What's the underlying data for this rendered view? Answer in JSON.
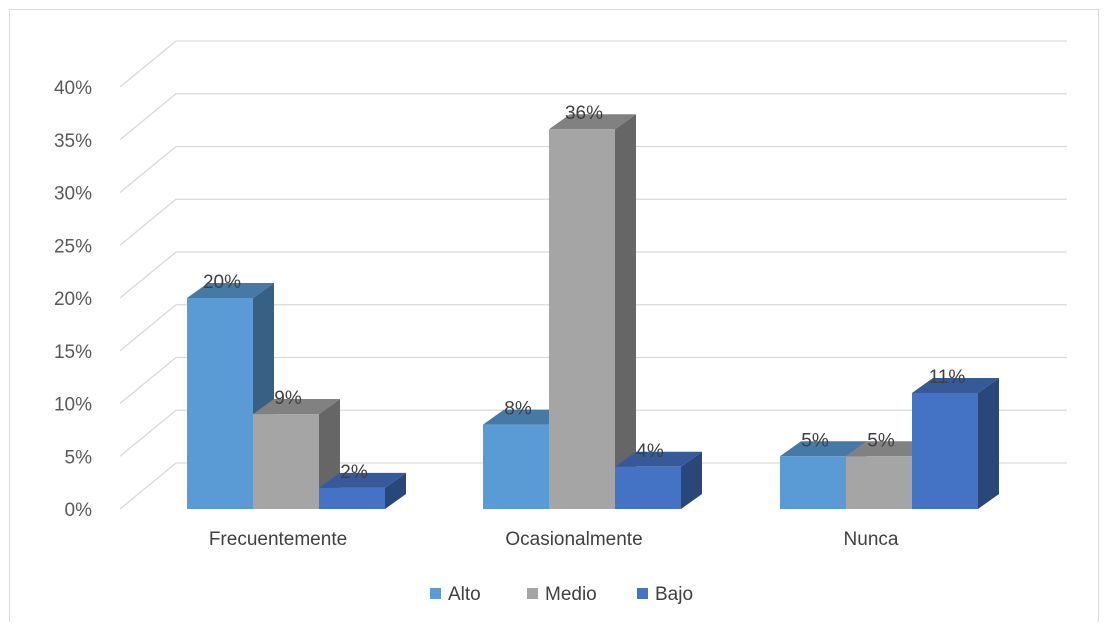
{
  "chart_data": {
    "type": "bar",
    "style": "3d-clustered-column",
    "categories": [
      "Frecuentemente",
      "Ocasionalmente",
      "Nunca"
    ],
    "series": [
      {
        "name": "Alto",
        "values": [
          20,
          8,
          5
        ],
        "labels": [
          "20%",
          "8%",
          "5%"
        ],
        "color": "#5b9bd5"
      },
      {
        "name": "Medio",
        "values": [
          9,
          36,
          5
        ],
        "labels": [
          "9%",
          "36%",
          "5%"
        ],
        "color": "#a5a5a5"
      },
      {
        "name": "Bajo",
        "values": [
          2,
          4,
          11
        ],
        "labels": [
          "2%",
          "4%",
          "11%"
        ],
        "color": "#4472c4"
      }
    ],
    "y_ticks": [
      0,
      5,
      10,
      15,
      20,
      25,
      30,
      35,
      40
    ],
    "y_tick_labels": [
      "0%",
      "5%",
      "10%",
      "15%",
      "20%",
      "25%",
      "30%",
      "35%",
      "40%"
    ],
    "ylim": [
      0,
      40
    ],
    "grid": true,
    "legend_position": "bottom"
  }
}
